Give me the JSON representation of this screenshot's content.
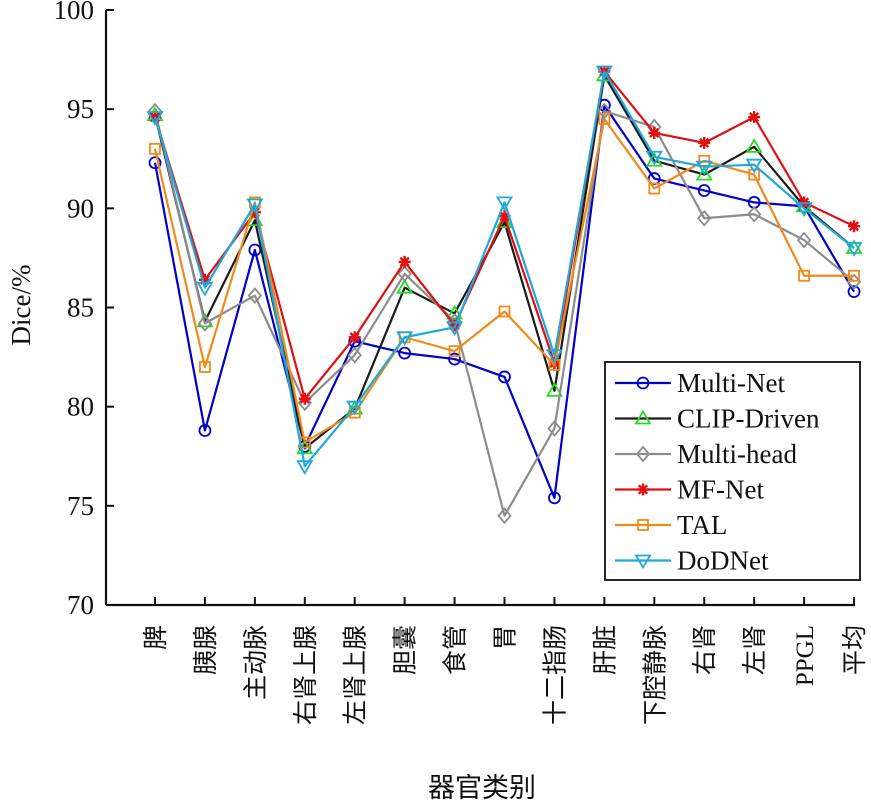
{
  "chart_data": {
    "type": "line",
    "title": "",
    "xlabel": "器官类别",
    "ylabel": "Dice/%",
    "ylim": [
      70,
      100
    ],
    "yticks": [
      70,
      75,
      80,
      85,
      90,
      95,
      100
    ],
    "grid": false,
    "legend_position": "bottom-right",
    "categories": [
      "脾",
      "胰腺",
      "主动脉",
      "右肾上腺",
      "左肾上腺",
      "胆囊",
      "食管",
      "胃",
      "十二指肠",
      "肝脏",
      "下腔静脉",
      "右肾",
      "左肾",
      "PPGL",
      "平均"
    ],
    "series": [
      {
        "name": "Multi-Net",
        "color": "#0000cc",
        "marker": "circle",
        "values": [
          92.3,
          78.8,
          87.9,
          78.0,
          83.3,
          82.7,
          82.4,
          81.5,
          75.4,
          95.2,
          91.5,
          90.9,
          90.3,
          90.1,
          85.8
        ]
      },
      {
        "name": "CLIP-Driven",
        "color": "#1a1a1a",
        "marker_color": "#22dd22",
        "marker": "triangle-up",
        "values": [
          94.7,
          84.3,
          89.4,
          77.9,
          79.9,
          86.0,
          84.7,
          89.3,
          80.8,
          96.7,
          92.4,
          91.7,
          93.1,
          90.1,
          88.0
        ]
      },
      {
        "name": "Multi-head",
        "color": "#8c8c8c",
        "marker": "diamond",
        "values": [
          94.9,
          84.2,
          85.6,
          80.2,
          82.6,
          86.7,
          84.3,
          74.5,
          78.9,
          94.9,
          94.1,
          89.5,
          89.7,
          88.4,
          86.3
        ]
      },
      {
        "name": "MF-Net",
        "color": "#e01010",
        "marker": "asterisk",
        "values": [
          94.6,
          86.4,
          89.8,
          80.4,
          83.5,
          87.3,
          84.1,
          89.6,
          82.2,
          96.9,
          93.8,
          93.3,
          94.6,
          90.3,
          89.1
        ]
      },
      {
        "name": "TAL",
        "color": "#f08a1a",
        "marker": "square",
        "values": [
          93.0,
          82.0,
          90.3,
          78.2,
          79.7,
          83.5,
          82.8,
          84.8,
          82.1,
          94.5,
          91.0,
          92.4,
          91.7,
          86.6,
          86.6
        ]
      },
      {
        "name": "DoDNet",
        "color": "#1fa8dd",
        "marker": "triangle-down",
        "values": [
          94.6,
          86.0,
          90.2,
          77.0,
          80.0,
          83.5,
          84.0,
          90.3,
          82.6,
          96.9,
          92.6,
          92.1,
          92.2,
          90.0,
          88.0
        ]
      }
    ]
  }
}
